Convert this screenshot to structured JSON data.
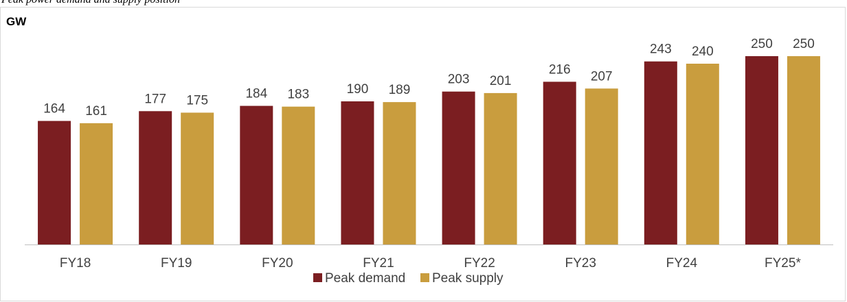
{
  "heading": "Peak power demand and supply position",
  "chart_data": {
    "type": "bar",
    "ylabel": "GW",
    "categories": [
      "FY18",
      "FY19",
      "FY20",
      "FY21",
      "FY22",
      "FY23",
      "FY24",
      "FY25*"
    ],
    "series": [
      {
        "name": "Peak demand",
        "color": "#7b1e21",
        "values": [
          164,
          177,
          184,
          190,
          203,
          216,
          243,
          250
        ]
      },
      {
        "name": "Peak supply",
        "color": "#c99d3e",
        "values": [
          161,
          175,
          183,
          189,
          201,
          207,
          240,
          250
        ]
      }
    ],
    "ylim": [
      0,
      250
    ],
    "grid": false,
    "legend_position": "bottom"
  }
}
